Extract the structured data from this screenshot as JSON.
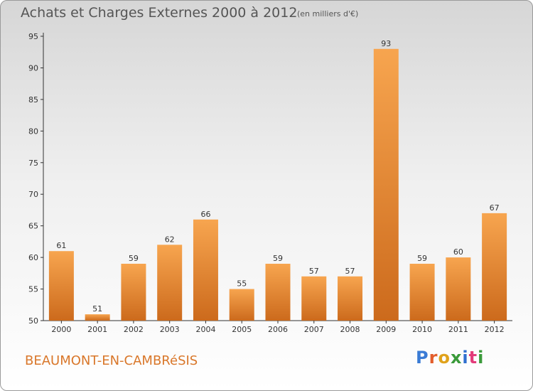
{
  "header": {
    "title": "Achats et Charges Externes 2000 à 2012",
    "unit": "(en milliers d'€)"
  },
  "footer": {
    "commune": "BEAUMONT-EN-CAMBRéSIS",
    "brand": "Proxiti",
    "brand_colors": [
      "#3a7bd5",
      "#e35d2b",
      "#e0a21b",
      "#3a9a3a",
      "#2f6fcf",
      "#e33b7a",
      "#3a9a3a"
    ]
  },
  "colors": {
    "bar_light": "#f7a54f",
    "bar_dark": "#cc6a1c",
    "commune_text": "#d9772a"
  },
  "chart_data": {
    "type": "bar",
    "categories": [
      "2000",
      "2001",
      "2002",
      "2003",
      "2004",
      "2005",
      "2006",
      "2007",
      "2008",
      "2009",
      "2010",
      "2011",
      "2012"
    ],
    "values": [
      61,
      51,
      59,
      62,
      66,
      55,
      59,
      57,
      57,
      93,
      59,
      60,
      67
    ],
    "title": "Achats et Charges Externes 2000 à 2012",
    "xlabel": "",
    "ylabel": "",
    "ylim": [
      50,
      95
    ],
    "yticks": [
      50,
      55,
      60,
      65,
      70,
      75,
      80,
      85,
      90,
      95
    ],
    "grid": false,
    "legend": "none"
  }
}
